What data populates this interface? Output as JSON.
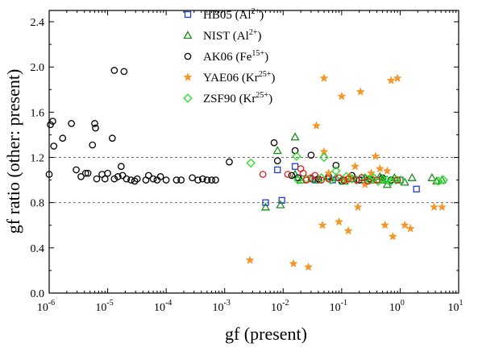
{
  "chart_data": {
    "type": "scatter",
    "xlabel": "gf (present)",
    "ylabel": "gf ratio (other: present)",
    "xscale": "log",
    "xlim": [
      1e-06,
      10
    ],
    "ylim": [
      0.0,
      2.5
    ],
    "x_ticks": [
      {
        "value": 1e-06,
        "base": "10",
        "exp": "-6"
      },
      {
        "value": 1e-05,
        "base": "10",
        "exp": "-5"
      },
      {
        "value": 0.0001,
        "base": "10",
        "exp": "-4"
      },
      {
        "value": 0.001,
        "base": "10",
        "exp": "-3"
      },
      {
        "value": 0.01,
        "base": "10",
        "exp": "-2"
      },
      {
        "value": 0.1,
        "base": "10",
        "exp": "-1"
      },
      {
        "value": 1,
        "base": "10",
        "exp": "0"
      },
      {
        "value": 10,
        "base": "10",
        "exp": "1"
      }
    ],
    "y_ticks": [
      {
        "value": 0.0,
        "label": "0.0"
      },
      {
        "value": 0.4,
        "label": "0.4"
      },
      {
        "value": 0.8,
        "label": "0.8"
      },
      {
        "value": 1.2,
        "label": "1.2"
      },
      {
        "value": 1.6,
        "label": "1.6"
      },
      {
        "value": 2.0,
        "label": "2.0"
      },
      {
        "value": 2.4,
        "label": "2.4"
      }
    ],
    "reference_lines": [
      0.8,
      1.2
    ],
    "legend_position": "top-center",
    "series": [
      {
        "name": "HB05",
        "sup": "2+",
        "ion": "Al",
        "marker": "square",
        "color": "#1f3fd6",
        "points": [
          [
            0.005,
            0.8
          ],
          [
            0.0095,
            0.82
          ],
          [
            0.008,
            1.09
          ],
          [
            0.016,
            1.12
          ],
          [
            0.035,
            1.0
          ],
          [
            0.07,
            1.0
          ],
          [
            0.22,
            1.0
          ],
          [
            0.5,
            1.0
          ],
          [
            1.0,
            1.0
          ],
          [
            1.9,
            0.92
          ]
        ]
      },
      {
        "name": "NIST",
        "sup": "2+",
        "ion": "Al",
        "marker": "triangle",
        "color": "#1e8c1e",
        "points": [
          [
            0.005,
            0.76
          ],
          [
            0.009,
            0.78
          ],
          [
            0.008,
            1.26
          ],
          [
            0.016,
            1.38
          ],
          [
            0.016,
            1.05
          ],
          [
            0.02,
            1.0
          ],
          [
            0.04,
            1.0
          ],
          [
            0.08,
            1.02
          ],
          [
            0.11,
            0.99
          ],
          [
            0.15,
            1.01
          ],
          [
            0.25,
            1.02
          ],
          [
            0.35,
            1.0
          ],
          [
            0.5,
            1.0
          ],
          [
            0.6,
            0.96
          ],
          [
            0.8,
            1.02
          ],
          [
            1.2,
            0.98
          ],
          [
            1.6,
            1.02
          ],
          [
            3.5,
            1.02
          ],
          [
            4.2,
            0.99
          ],
          [
            5.2,
            1.0
          ],
          [
            0.03,
            1.01
          ],
          [
            0.06,
            1.03
          ],
          [
            0.45,
            1.03
          ]
        ]
      },
      {
        "name": "AK06",
        "sup": "15+",
        "ion": "Fe",
        "marker": "circle",
        "color": "#000000",
        "points": [
          [
            1e-06,
            1.05
          ],
          [
            1.05e-06,
            1.49
          ],
          [
            1.15e-06,
            1.52
          ],
          [
            1.2e-06,
            1.3
          ],
          [
            1.7e-06,
            1.37
          ],
          [
            2.4e-06,
            1.5
          ],
          [
            2.9e-06,
            1.09
          ],
          [
            3.5e-06,
            1.03
          ],
          [
            4.2e-06,
            1.06
          ],
          [
            4.6e-06,
            1.06
          ],
          [
            5.5e-06,
            1.31
          ],
          [
            6e-06,
            1.5
          ],
          [
            6.2e-06,
            1.46
          ],
          [
            6.5e-06,
            1.01
          ],
          [
            8e-06,
            1.05
          ],
          [
            9e-06,
            1.01
          ],
          [
            1e-05,
            1.06
          ],
          [
            1.2e-05,
            1.37
          ],
          [
            1.3e-05,
            1.97
          ],
          [
            1.3e-05,
            1.01
          ],
          [
            1.5e-05,
            1.03
          ],
          [
            1.7e-05,
            1.12
          ],
          [
            1.8e-05,
            1.04
          ],
          [
            1.9e-05,
            1.96
          ],
          [
            2.1e-05,
            1.01
          ],
          [
            2.5e-05,
            1.0
          ],
          [
            2.9e-05,
            0.99
          ],
          [
            3.2e-05,
            1.01
          ],
          [
            4.5e-05,
            1.0
          ],
          [
            5e-05,
            1.04
          ],
          [
            6e-05,
            1.01
          ],
          [
            7e-05,
            1.0
          ],
          [
            8e-05,
            1.03
          ],
          [
            0.0001,
            1.0
          ],
          [
            0.00015,
            1.0
          ],
          [
            0.00018,
            1.0
          ],
          [
            0.00028,
            1.02
          ],
          [
            0.00035,
            1.0
          ],
          [
            0.00042,
            1.01
          ],
          [
            0.0005,
            1.0
          ],
          [
            0.0006,
            1.0
          ],
          [
            0.0007,
            1.0
          ],
          [
            0.0012,
            1.16
          ],
          [
            0.007,
            1.33
          ],
          [
            0.008,
            1.17
          ],
          [
            0.014,
            1.04
          ],
          [
            0.016,
            1.26
          ],
          [
            0.018,
            1.02
          ],
          [
            0.03,
            1.22
          ],
          [
            0.04,
            1.01
          ],
          [
            0.06,
            1.03
          ],
          [
            0.08,
            1.13
          ],
          [
            0.1,
            0.99
          ],
          [
            0.15,
            1.04
          ],
          [
            0.2,
            1.0
          ],
          [
            0.3,
            1.01
          ],
          [
            0.5,
            1.02
          ],
          [
            0.7,
            1.0
          ]
        ]
      },
      {
        "name": "YAE06",
        "sup": "25+",
        "ion": "Kr",
        "marker": "star",
        "color": "#f5962a",
        "points": [
          [
            0.0027,
            0.29
          ],
          [
            0.015,
            0.26
          ],
          [
            0.027,
            0.23
          ],
          [
            0.037,
            1.48
          ],
          [
            0.047,
            0.6
          ],
          [
            0.05,
            1.9
          ],
          [
            0.05,
            1.25
          ],
          [
            0.06,
            1.06
          ],
          [
            0.09,
            0.63
          ],
          [
            0.1,
            1.74
          ],
          [
            0.12,
            1.0
          ],
          [
            0.13,
            0.55
          ],
          [
            0.14,
            1.03
          ],
          [
            0.17,
            1.12
          ],
          [
            0.19,
            0.76
          ],
          [
            0.21,
            1.78
          ],
          [
            0.25,
            0.96
          ],
          [
            0.38,
            1.21
          ],
          [
            0.45,
            1.1
          ],
          [
            0.55,
            0.6
          ],
          [
            0.7,
            1.88
          ],
          [
            0.75,
            0.5
          ],
          [
            0.9,
            1.9
          ],
          [
            1.2,
            0.6
          ],
          [
            1.5,
            0.57
          ],
          [
            3.8,
            0.76
          ],
          [
            5.2,
            0.76
          ],
          [
            0.32,
            1.06
          ],
          [
            0.6,
            1.08
          ]
        ]
      },
      {
        "name": "ZSF90",
        "sup": "25+",
        "ion": "Kr",
        "marker": "diamond",
        "color": "#22e022",
        "points": [
          [
            0.0028,
            1.15
          ],
          [
            0.017,
            1.21
          ],
          [
            0.018,
            1.0
          ],
          [
            0.025,
            1.01
          ],
          [
            0.045,
            1.02
          ],
          [
            0.05,
            1.2
          ],
          [
            0.065,
            1.0
          ],
          [
            0.08,
            1.08
          ],
          [
            0.1,
            1.0
          ],
          [
            0.12,
            1.03
          ],
          [
            0.15,
            1.01
          ],
          [
            0.18,
            1.0
          ],
          [
            0.22,
            1.02
          ],
          [
            0.26,
            1.01
          ],
          [
            0.3,
            1.0
          ],
          [
            0.35,
            1.02
          ],
          [
            0.42,
            0.99
          ],
          [
            0.5,
            1.01
          ],
          [
            0.6,
            1.0
          ],
          [
            0.7,
            0.99
          ],
          [
            0.85,
            1.0
          ],
          [
            1.0,
            1.0
          ],
          [
            4.5,
            0.99
          ],
          [
            5.5,
            1.0
          ]
        ]
      },
      {
        "name": "",
        "marker": "circle",
        "color": "#e02020",
        "points": [
          [
            0.0045,
            1.05
          ],
          [
            0.012,
            1.05
          ],
          [
            0.02,
            1.1
          ],
          [
            0.022,
            1.06
          ],
          [
            0.025,
            1.0
          ],
          [
            0.03,
            1.02
          ],
          [
            0.035,
            1.04
          ],
          [
            0.045,
            1.0
          ],
          [
            0.06,
            1.01
          ],
          [
            0.09,
            1.02
          ],
          [
            0.11,
            1.0
          ],
          [
            0.13,
            1.01
          ],
          [
            0.18,
            1.0
          ],
          [
            0.22,
            1.02
          ],
          [
            0.28,
            0.99
          ],
          [
            0.4,
            1.0
          ],
          [
            0.9,
            1.0
          ]
        ]
      }
    ]
  }
}
